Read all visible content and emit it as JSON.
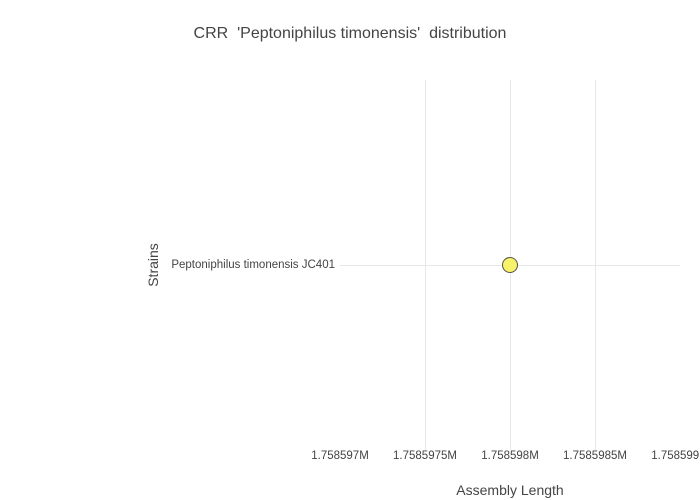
{
  "chart_data": {
    "type": "scatter",
    "title": "CRR  'Peptoniphilus timonensis'  distribution",
    "xlabel": "Assembly Length",
    "ylabel": "Strains",
    "xlim": [
      1758597,
      1758599
    ],
    "x_ticks": [
      {
        "value": 1758597,
        "label": "1.758597M"
      },
      {
        "value": 1758597.5,
        "label": "1.7585975M"
      },
      {
        "value": 1758598,
        "label": "1.758598M"
      },
      {
        "value": 1758598.5,
        "label": "1.7585985M"
      },
      {
        "value": 1758599,
        "label": "1.758599M"
      }
    ],
    "categories": [
      "Peptoniphilus timonensis JC401"
    ],
    "points": [
      {
        "strain": "Peptoniphilus timonensis JC401",
        "assembly_length": 1758598,
        "assembly_length_label": "1.758598M"
      }
    ],
    "grid": true,
    "legend": "none",
    "colors": {
      "background": "#ffffff",
      "grid": "#e8e8e8",
      "text": "#444444",
      "marker_fill": "#f8f26a",
      "marker_stroke": "#53534a"
    }
  }
}
